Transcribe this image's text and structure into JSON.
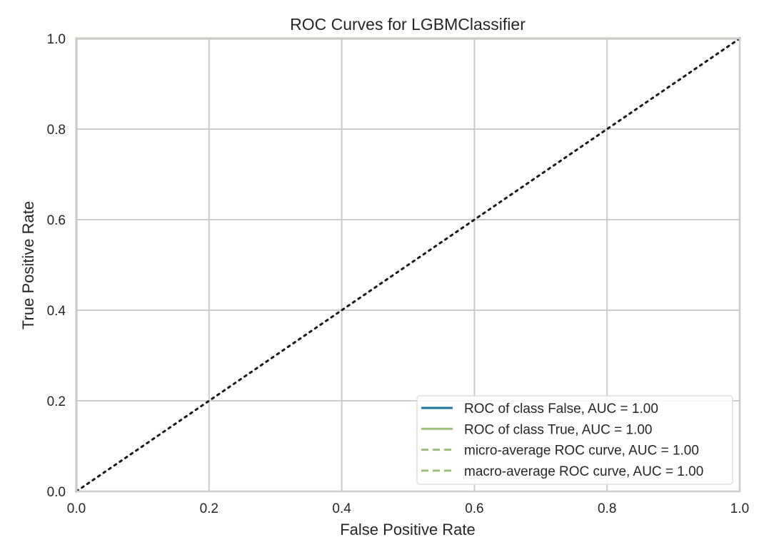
{
  "chart_data": {
    "type": "line",
    "title": "ROC Curves for LGBMClassifier",
    "xlabel": "False Positive Rate",
    "ylabel": "True Positive Rate",
    "xlim": [
      0.0,
      1.0
    ],
    "ylim": [
      0.0,
      1.0
    ],
    "x_ticks": [
      "0.0",
      "0.2",
      "0.4",
      "0.6",
      "0.8",
      "1.0"
    ],
    "y_ticks": [
      "0.0",
      "0.2",
      "0.4",
      "0.6",
      "0.8",
      "1.0"
    ],
    "x_tick_values": [
      0.0,
      0.2,
      0.4,
      0.6,
      0.8,
      1.0
    ],
    "y_tick_values": [
      0.0,
      0.2,
      0.4,
      0.6,
      0.8,
      1.0
    ],
    "grid": true,
    "legend_position": "lower-right",
    "series": [
      {
        "name": "ROC of class False, AUC = 1.00",
        "style": "solid",
        "color": "#1f77a0",
        "x": [
          0.0,
          0.0,
          1.0
        ],
        "y": [
          0.0,
          1.0,
          1.0
        ]
      },
      {
        "name": "ROC of class True, AUC = 1.00",
        "style": "solid",
        "color": "#9bc07a",
        "x": [
          0.0,
          0.0,
          1.0
        ],
        "y": [
          0.0,
          1.0,
          1.0
        ]
      },
      {
        "name": "micro-average ROC curve, AUC = 1.00",
        "style": "dashed",
        "color": "#9bc07a",
        "x": [
          0.0,
          0.0,
          1.0
        ],
        "y": [
          0.0,
          1.0,
          1.0
        ]
      },
      {
        "name": "macro-average ROC curve, AUC = 1.00",
        "style": "dashed",
        "color": "#9bc07a",
        "x": [
          0.0,
          0.0,
          1.0
        ],
        "y": [
          0.0,
          1.0,
          1.0
        ]
      }
    ],
    "reference_line": {
      "style": "dotted",
      "color": "#1a1a1a",
      "x": [
        0.0,
        1.0
      ],
      "y": [
        0.0,
        1.0
      ]
    }
  }
}
